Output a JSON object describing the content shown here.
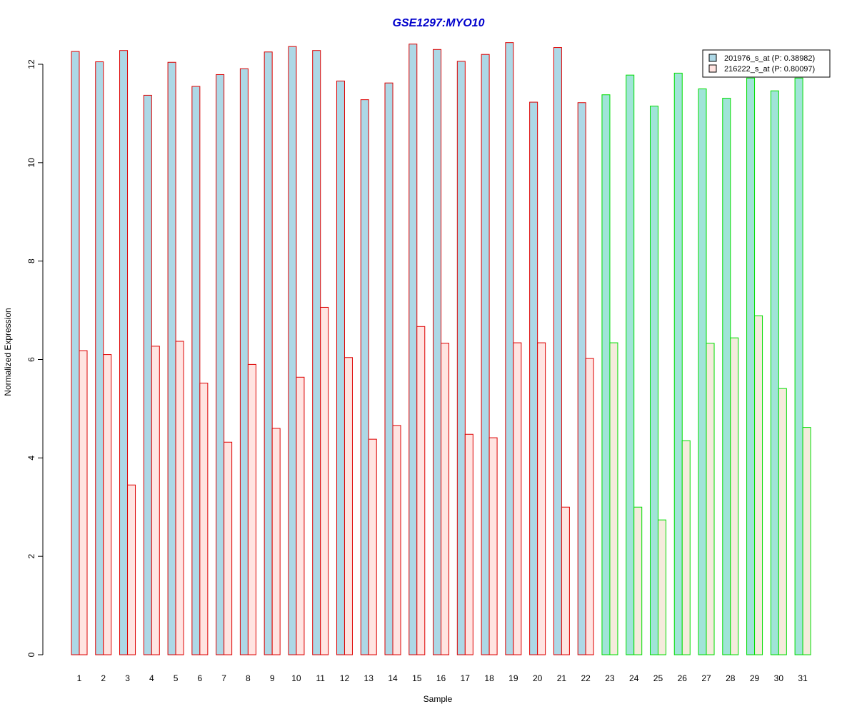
{
  "chart_data": {
    "type": "bar",
    "title": "GSE1297:MYO10",
    "xlabel": "Sample",
    "ylabel": "Normalized Expression",
    "ylim": [
      0,
      12.5
    ],
    "yticks": [
      0,
      2,
      4,
      6,
      8,
      10,
      12
    ],
    "grid": false,
    "legend_position": "top-right",
    "categories": [
      "1",
      "2",
      "3",
      "4",
      "5",
      "6",
      "7",
      "8",
      "9",
      "10",
      "11",
      "12",
      "13",
      "14",
      "15",
      "16",
      "17",
      "18",
      "19",
      "20",
      "21",
      "22",
      "23",
      "24",
      "25",
      "26",
      "27",
      "28",
      "29",
      "30",
      "31"
    ],
    "group_a_count": 22,
    "series": [
      {
        "name": "201976_s_at (P: 0.38982)",
        "values": [
          12.26,
          12.05,
          12.28,
          11.37,
          12.04,
          11.55,
          11.79,
          11.91,
          12.25,
          12.36,
          12.28,
          11.66,
          11.28,
          11.62,
          12.41,
          12.3,
          12.06,
          12.2,
          12.44,
          11.23,
          12.34,
          11.22,
          11.38,
          11.78,
          11.15,
          11.82,
          11.5,
          11.31,
          11.72,
          11.46,
          11.72
        ]
      },
      {
        "name": "216222_s_at (P: 0.80097)",
        "values": [
          6.18,
          6.1,
          3.45,
          6.27,
          6.37,
          5.52,
          4.32,
          5.9,
          4.6,
          5.64,
          7.06,
          6.04,
          4.38,
          4.66,
          6.67,
          6.33,
          4.48,
          4.41,
          6.34,
          6.34,
          3.0,
          6.02,
          6.34,
          3.0,
          2.74,
          4.35,
          6.33,
          6.44,
          6.89,
          5.41,
          4.62
        ]
      }
    ],
    "colors": {
      "series1_fill_a": "#add8e6",
      "series2_fill_a": "#ffe4e1",
      "series1_fill_b": "#a0e4d8",
      "series2_fill_b": "#f5ebdc",
      "border_a": "#dd0000",
      "border_b": "#00dd00"
    }
  }
}
